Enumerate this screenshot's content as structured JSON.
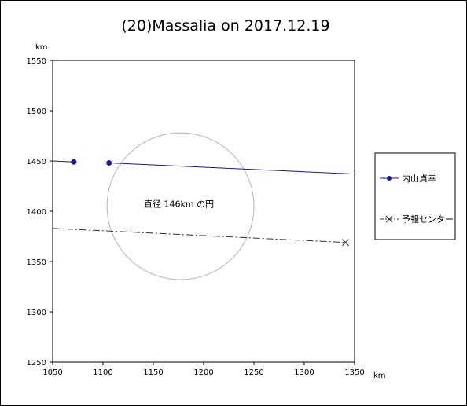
{
  "chart_data": {
    "type": "scatter",
    "title": "(20)Massalia on 2017.12.19",
    "xlabel": "km",
    "ylabel": "km",
    "xlim": [
      1050,
      1350
    ],
    "ylim": [
      1250,
      1550
    ],
    "x_ticks": [
      "1050",
      "1100",
      "1150",
      "1200",
      "1250",
      "1300",
      "1350"
    ],
    "y_ticks": [
      "1550",
      "1500",
      "1450",
      "1400",
      "1350",
      "1300",
      "1250"
    ],
    "grid": false,
    "legend_position": "right",
    "series": [
      {
        "name": "内山貞幸",
        "color": "#1a1a8c",
        "marker": "circle",
        "segments": [
          [
            [
              1050,
              1450
            ],
            [
              1071,
              1449
            ]
          ],
          [
            [
              1106,
              1448
            ],
            [
              1350,
              1437
            ]
          ]
        ],
        "points": [
          [
            1071,
            1449
          ],
          [
            1106,
            1448
          ]
        ]
      },
      {
        "name": "予報センター",
        "color": "#333333",
        "marker": "x",
        "line_style": "dash-dot",
        "segments": [
          [
            [
              1050,
              1383
            ],
            [
              1341,
              1369
            ]
          ]
        ],
        "points": [
          [
            1341,
            1369
          ]
        ]
      }
    ],
    "circle": {
      "center": [
        1177,
        1405
      ],
      "diameter": 146,
      "color": "#c0c0c0"
    },
    "annotation": "直径 146km の円"
  }
}
